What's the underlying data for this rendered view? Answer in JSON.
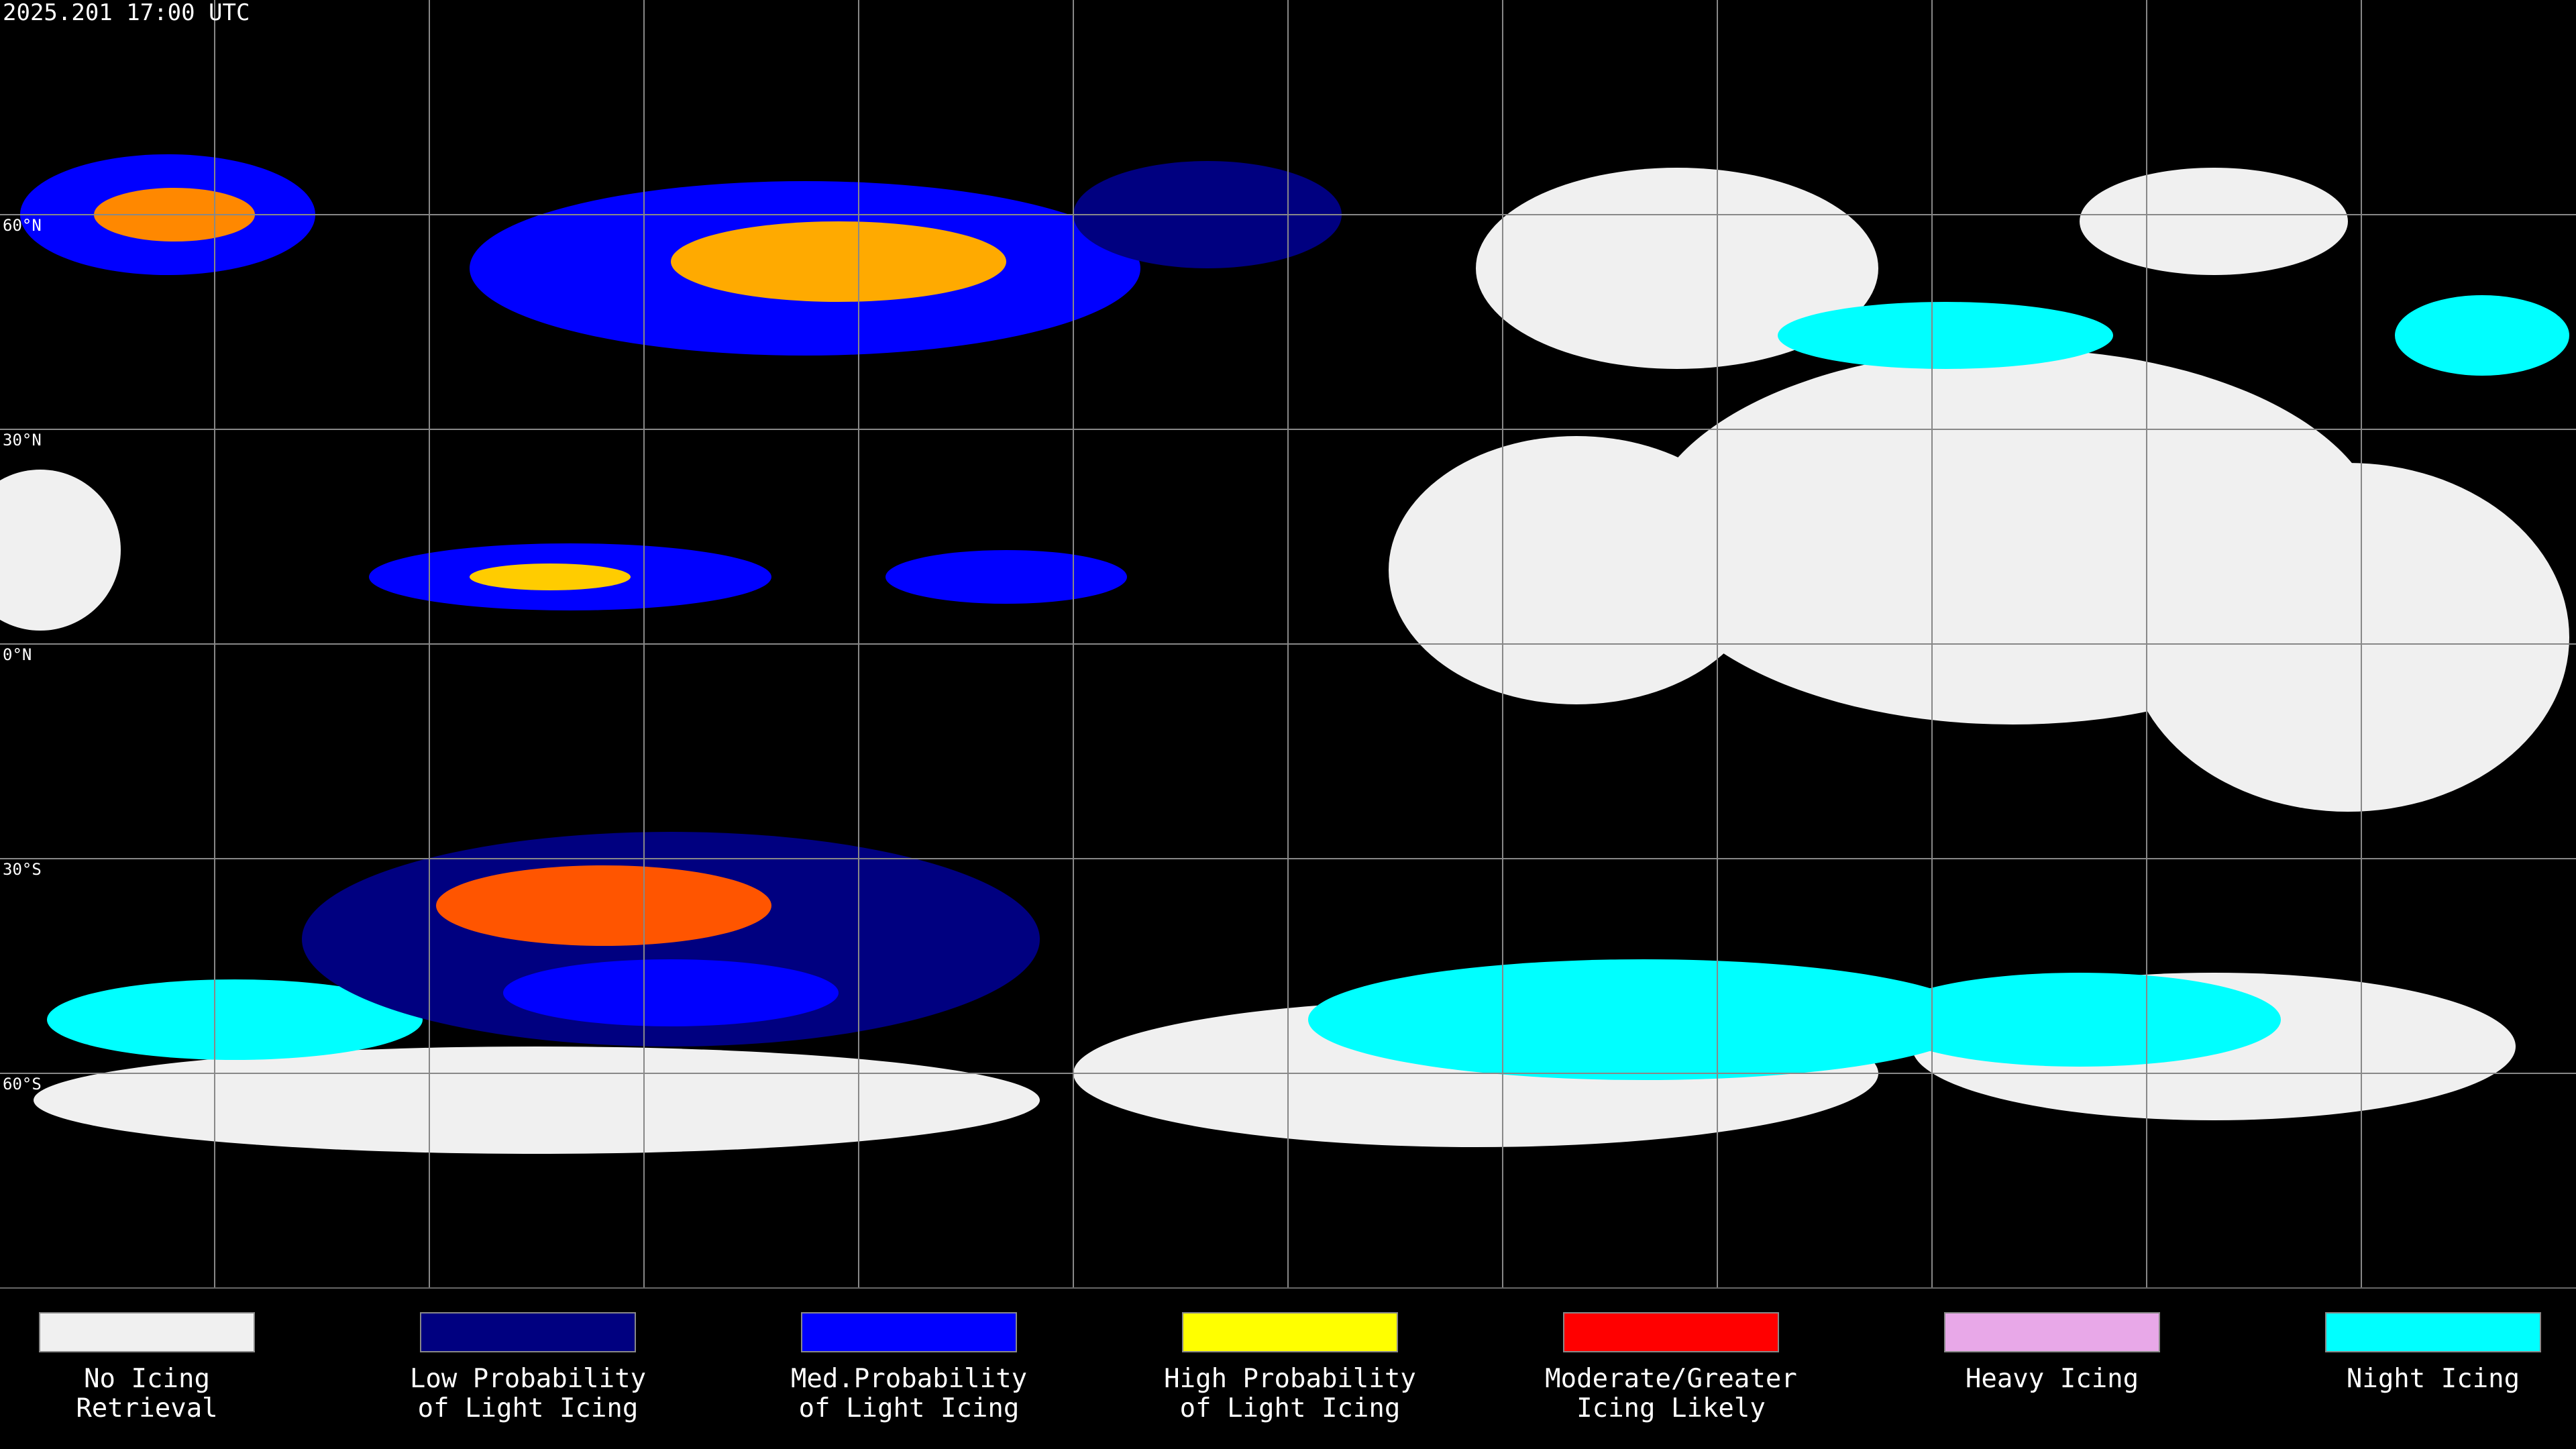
{
  "header": {
    "title": "2025.201 17:00 UTC"
  },
  "map": {
    "lat_labels": [
      "60°N",
      "30°N",
      "0°N",
      "30°S",
      "60°S"
    ]
  },
  "legend": [
    {
      "label": [
        "No Icing",
        "Retrieval"
      ],
      "color": "#f0f0f0"
    },
    {
      "label": [
        "Low Probability",
        "of Light Icing"
      ],
      "color": "#000080"
    },
    {
      "label": [
        "Med.Probability",
        "of Light Icing"
      ],
      "color": "#0000ff"
    },
    {
      "label": [
        "High Probability",
        "of Light Icing"
      ],
      "color": "#ffff00"
    },
    {
      "label": [
        "Moderate/Greater",
        "Icing Likely"
      ],
      "color": "#ff0000"
    },
    {
      "label": [
        "Heavy Icing"
      ],
      "color": "#e8a8e8"
    },
    {
      "label": [
        "Night Icing"
      ],
      "color": "#00ffff"
    }
  ]
}
